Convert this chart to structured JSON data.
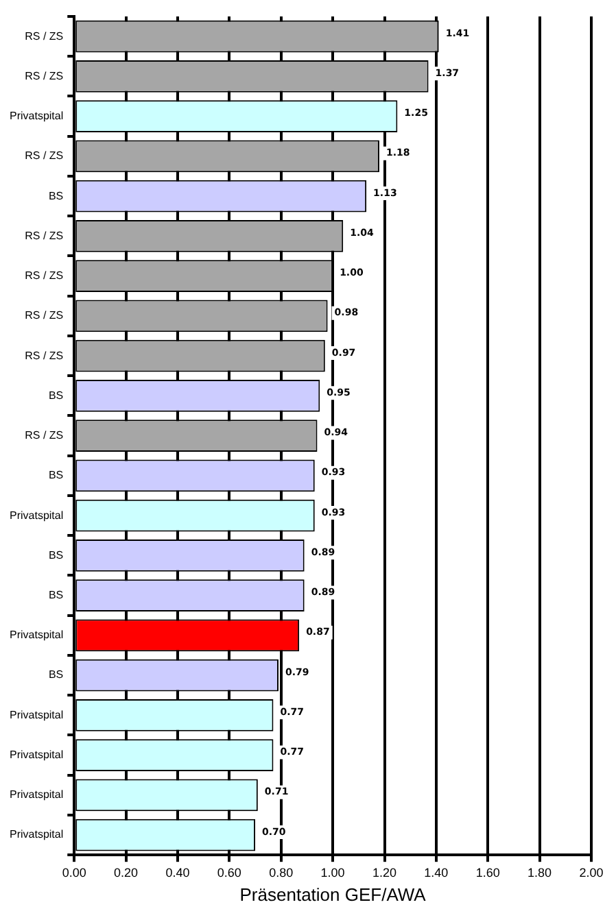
{
  "chart_data": {
    "type": "bar",
    "orientation": "horizontal",
    "xlabel": "Präsentation GEF/AWA",
    "categories": [
      "RS / ZS",
      "RS / ZS",
      "Privatspital",
      "RS / ZS",
      "BS",
      "RS / ZS",
      "RS / ZS",
      "RS / ZS",
      "RS / ZS",
      "BS",
      "RS / ZS",
      "BS",
      "Privatspital",
      "BS",
      "BS",
      "Privatspital",
      "BS",
      "Privatspital",
      "Privatspital",
      "Privatspital",
      "Privatspital"
    ],
    "values": [
      1.41,
      1.37,
      1.25,
      1.18,
      1.13,
      1.04,
      1.0,
      0.98,
      0.97,
      0.95,
      0.94,
      0.93,
      0.93,
      0.89,
      0.89,
      0.87,
      0.79,
      0.77,
      0.77,
      0.71,
      0.7
    ],
    "colors": [
      "#a6a6a6",
      "#a6a6a6",
      "#ccffff",
      "#a6a6a6",
      "#ccccff",
      "#a6a6a6",
      "#a6a6a6",
      "#a6a6a6",
      "#a6a6a6",
      "#ccccff",
      "#a6a6a6",
      "#ccccff",
      "#ccffff",
      "#ccccff",
      "#ccccff",
      "#ff0000",
      "#ccccff",
      "#ccffff",
      "#ccffff",
      "#ccffff",
      "#ccffff"
    ],
    "xlim": [
      0,
      2
    ],
    "xticks": [
      {
        "value": 0,
        "label": "0.00"
      },
      {
        "value": 0.2,
        "label": "0.20"
      },
      {
        "value": 0.4,
        "label": "0.40"
      },
      {
        "value": 0.6,
        "label": "0.60"
      },
      {
        "value": 0.8,
        "label": "0.80"
      },
      {
        "value": 1,
        "label": "1.00"
      },
      {
        "value": 1.2,
        "label": "1.20"
      },
      {
        "value": 1.4,
        "label": "1.40"
      },
      {
        "value": 1.6,
        "label": "1.60"
      },
      {
        "value": 1.8,
        "label": "1.80"
      },
      {
        "value": 2,
        "label": "2.00"
      }
    ],
    "value_labels": [
      "1.41",
      "1.37",
      "1.25",
      "1.18",
      "1.13",
      "1.04",
      "1.00",
      "0.98",
      "0.97",
      "0.95",
      "0.94",
      "0.93",
      "0.93",
      "0.89",
      "0.89",
      "0.87",
      "0.79",
      "0.77",
      "0.77",
      "0.71",
      "0.70"
    ],
    "grid": "x"
  }
}
